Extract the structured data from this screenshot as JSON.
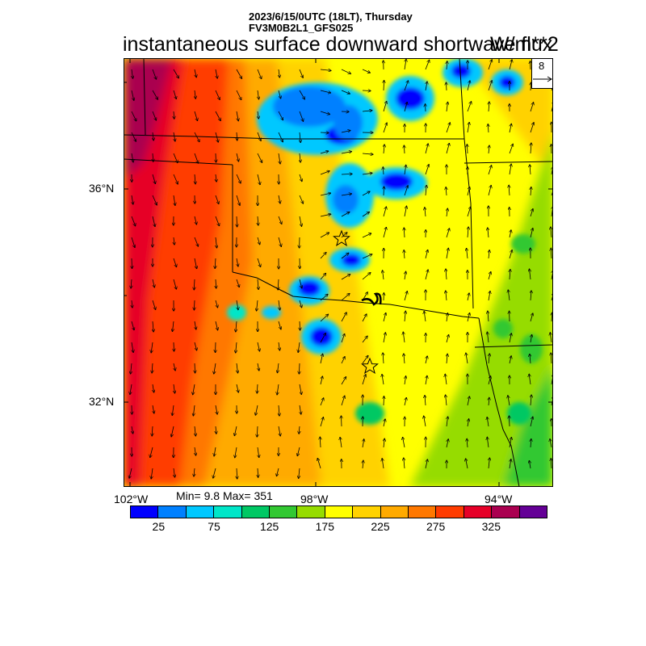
{
  "header": {
    "valid_time": "2023/6/15/0UTC (18LT), Thursday",
    "model_run": "FV3M0B2L1_GFS025"
  },
  "title": "instantaneous surface downward shortwave flux",
  "units": "W/m**2",
  "axes": {
    "lat_labels": [
      "36°N",
      "32°N"
    ],
    "lon_labels": [
      "102°W",
      "98°W",
      "94°W"
    ]
  },
  "stats": "Min= 9.8 Max= 351",
  "reference_vector": {
    "label": "8"
  },
  "markers": {
    "city_symbol": "star",
    "count": 2
  },
  "colorbar": {
    "colors": [
      "#0000ff",
      "#0080ff",
      "#00c8ff",
      "#00e6c8",
      "#00c864",
      "#32c832",
      "#96dc00",
      "#ffff00",
      "#ffd200",
      "#ffaa00",
      "#ff7800",
      "#ff3c00",
      "#e60028",
      "#aa0050",
      "#640096"
    ],
    "tick_labels": [
      "25",
      "75",
      "125",
      "175",
      "225",
      "275",
      "325"
    ]
  },
  "chart_data": {
    "type": "heatmap",
    "variable": "instantaneous surface downward shortwave flux",
    "units": "W/m**2",
    "min": 9.8,
    "max": 351,
    "levels": [
      25,
      50,
      75,
      100,
      125,
      150,
      175,
      200,
      225,
      250,
      275,
      300,
      325,
      350
    ],
    "lon_ticks": [
      -102,
      -98,
      -94
    ],
    "lat_ticks": [
      36,
      32
    ]
  }
}
